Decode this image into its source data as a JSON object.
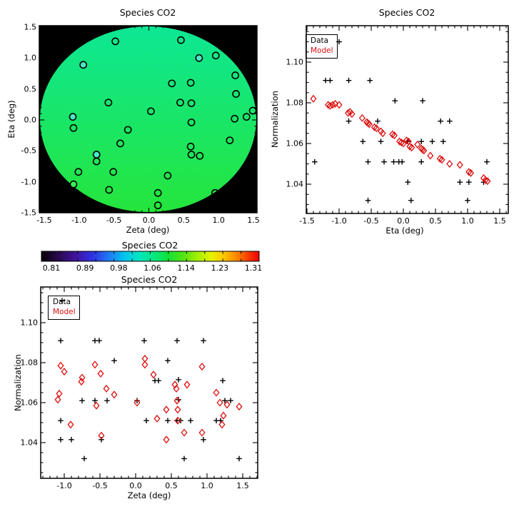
{
  "figure": {
    "background": "#ffffff"
  },
  "chart_data": [
    {
      "id": "disk_map",
      "type": "scatter",
      "title": "Species CO2",
      "xlabel": "Zeta (deg)",
      "ylabel": "Eta (deg)",
      "xlim": [
        -1.5,
        1.5
      ],
      "ylim": [
        -1.5,
        1.5
      ],
      "grid": false,
      "plot_background": "#000000",
      "disk_gradient_top": "#0de794",
      "disk_gradient_bottom": "#25e53c",
      "marker_outline": "#000000",
      "point_fills": {
        "bg": "none",
        "cyan": "#48e9c8",
        "green": "#35ef52"
      },
      "x_tick_values": [
        -1.5,
        -1.0,
        -0.5,
        0.0,
        0.5,
        1.0,
        1.5
      ],
      "x_tick_labels": [
        "-1.5",
        "-1.0",
        "-0.5",
        "0.0",
        "0.5",
        "1.0",
        "1.5"
      ],
      "y_tick_values": [
        1.5,
        1.0,
        0.5,
        0.0,
        -0.5,
        -1.0,
        -1.5
      ],
      "y_tick_labels": [
        "1.5",
        "1.0",
        "0.5",
        "0.0",
        "-0.5",
        "-1.0",
        "-1.5"
      ],
      "points": [
        [
          -0.48,
          1.27,
          "bg"
        ],
        [
          0.46,
          1.29,
          "bg"
        ],
        [
          0.72,
          1.0,
          "cyan"
        ],
        [
          0.96,
          1.04,
          "bg"
        ],
        [
          -0.94,
          0.89,
          "cyan"
        ],
        [
          1.24,
          0.72,
          "bg"
        ],
        [
          0.33,
          0.59,
          "bg"
        ],
        [
          0.6,
          0.6,
          "bg"
        ],
        [
          1.25,
          0.42,
          "bg"
        ],
        [
          -0.58,
          0.28,
          "bg"
        ],
        [
          0.45,
          0.28,
          "bg"
        ],
        [
          0.61,
          0.27,
          "bg"
        ],
        [
          0.03,
          0.14,
          "bg"
        ],
        [
          1.49,
          0.15,
          "bg"
        ],
        [
          1.23,
          0.02,
          "bg"
        ],
        [
          1.4,
          0.05,
          "bg"
        ],
        [
          -1.09,
          0.05,
          "cyan"
        ],
        [
          0.61,
          -0.04,
          "bg"
        ],
        [
          -1.08,
          -0.13,
          "bg"
        ],
        [
          -0.3,
          -0.16,
          "bg"
        ],
        [
          1.16,
          -0.33,
          "bg"
        ],
        [
          -0.41,
          -0.38,
          "bg"
        ],
        [
          0.6,
          -0.43,
          "bg"
        ],
        [
          0.61,
          -0.56,
          "bg"
        ],
        [
          0.73,
          -0.58,
          "bg"
        ],
        [
          -0.75,
          -0.56,
          "cyan"
        ],
        [
          -0.75,
          -0.67,
          "bg"
        ],
        [
          -1.01,
          -0.84,
          "bg"
        ],
        [
          -0.51,
          -0.84,
          "bg"
        ],
        [
          0.27,
          -0.9,
          "bg"
        ],
        [
          -1.08,
          -1.04,
          "green"
        ],
        [
          -0.57,
          -1.13,
          "bg"
        ],
        [
          0.13,
          -1.18,
          "bg"
        ],
        [
          0.95,
          -1.18,
          "bg"
        ],
        [
          0.13,
          -1.38,
          "bg"
        ]
      ]
    },
    {
      "id": "eta_scatter",
      "type": "scatter",
      "title": "Species CO2",
      "xlabel": "Eta (deg)",
      "ylabel": "Normalization",
      "xlim": [
        -1.51,
        1.63
      ],
      "ylim": [
        1.026,
        1.118
      ],
      "grid": false,
      "legend": [
        "Data",
        "Model"
      ],
      "legend_colors": [
        "#000000",
        "#dd1111"
      ],
      "legend_position": "upper-left",
      "x_tick_values": [
        -1.5,
        -1.0,
        -0.5,
        0.0,
        0.5,
        1.0,
        1.5
      ],
      "x_tick_labels": [
        "-1.5",
        "-1.0",
        "-0.5",
        "0.0",
        "0.5",
        "1.0",
        "1.5"
      ],
      "y_tick_values": [
        1.1,
        1.08,
        1.06,
        1.04
      ],
      "y_tick_labels": [
        "1.10",
        "1.08",
        "1.06",
        "1.04"
      ],
      "series": [
        {
          "name": "Data",
          "marker": "plus",
          "color": "#000000",
          "points": [
            [
              -1.0,
              1.11
            ],
            [
              -1.21,
              1.091
            ],
            [
              -1.14,
              1.091
            ],
            [
              -0.85,
              1.091
            ],
            [
              -0.52,
              1.091
            ],
            [
              -0.13,
              1.081
            ],
            [
              0.3,
              1.081
            ],
            [
              -0.85,
              1.071
            ],
            [
              -0.4,
              1.071
            ],
            [
              0.58,
              1.071
            ],
            [
              0.72,
              1.071
            ],
            [
              -0.63,
              1.061
            ],
            [
              -0.35,
              1.061
            ],
            [
              0.07,
              1.061
            ],
            [
              0.28,
              1.061
            ],
            [
              0.45,
              1.061
            ],
            [
              0.62,
              1.061
            ],
            [
              -1.38,
              1.051
            ],
            [
              -0.55,
              1.051
            ],
            [
              -0.3,
              1.051
            ],
            [
              -0.15,
              1.051
            ],
            [
              -0.07,
              1.051
            ],
            [
              -0.02,
              1.051
            ],
            [
              0.28,
              1.051
            ],
            [
              1.3,
              1.051
            ],
            [
              0.07,
              1.041
            ],
            [
              0.88,
              1.041
            ],
            [
              1.02,
              1.041
            ],
            [
              1.25,
              1.041
            ],
            [
              -0.55,
              1.032
            ],
            [
              0.12,
              1.032
            ],
            [
              1.0,
              1.032
            ]
          ]
        },
        {
          "name": "Model",
          "marker": "diamond",
          "color": "#dd1111",
          "points": [
            [
              -1.4,
              1.082
            ],
            [
              -1.17,
              1.079
            ],
            [
              -1.14,
              1.0785
            ],
            [
              -1.1,
              1.079
            ],
            [
              -1.06,
              1.0795
            ],
            [
              -1.0,
              1.079
            ],
            [
              -0.86,
              1.075
            ],
            [
              -0.83,
              1.0755
            ],
            [
              -0.8,
              1.0745
            ],
            [
              -0.64,
              1.0725
            ],
            [
              -0.57,
              1.0705
            ],
            [
              -0.55,
              1.07
            ],
            [
              -0.53,
              1.0695
            ],
            [
              -0.45,
              1.068
            ],
            [
              -0.42,
              1.0675
            ],
            [
              -0.35,
              1.066
            ],
            [
              -0.32,
              1.065
            ],
            [
              -0.17,
              1.0645
            ],
            [
              -0.14,
              1.064
            ],
            [
              -0.06,
              1.061
            ],
            [
              -0.03,
              1.0605
            ],
            [
              0.0,
              1.06
            ],
            [
              0.05,
              1.0615
            ],
            [
              0.08,
              1.061
            ],
            [
              0.1,
              1.0585
            ],
            [
              0.13,
              1.058
            ],
            [
              0.22,
              1.0595
            ],
            [
              0.28,
              1.0575
            ],
            [
              0.3,
              1.057
            ],
            [
              0.32,
              1.0565
            ],
            [
              0.42,
              1.054
            ],
            [
              0.57,
              1.0525
            ],
            [
              0.6,
              1.052
            ],
            [
              0.72,
              1.05
            ],
            [
              0.88,
              1.0495
            ],
            [
              1.02,
              1.046
            ],
            [
              1.05,
              1.0455
            ],
            [
              1.25,
              1.043
            ],
            [
              1.28,
              1.042
            ],
            [
              1.31,
              1.0415
            ]
          ]
        }
      ]
    },
    {
      "id": "colorbar",
      "type": "colorbar",
      "title": "Species CO2",
      "tick_labels": [
        "0.81",
        "0.89",
        "0.98",
        "1.06",
        "1.14",
        "1.23",
        "1.31"
      ],
      "tick_values": [
        0.81,
        0.89,
        0.98,
        1.06,
        1.14,
        1.23,
        1.31
      ],
      "range": [
        0.81,
        1.31
      ],
      "gradient_stops": [
        [
          0,
          "#050005"
        ],
        [
          8,
          "#2a0a52"
        ],
        [
          16,
          "#41149f"
        ],
        [
          23,
          "#2f2fe2"
        ],
        [
          31,
          "#2079f2"
        ],
        [
          38,
          "#00c3f0"
        ],
        [
          45,
          "#00e6c0"
        ],
        [
          52,
          "#06e77e"
        ],
        [
          58,
          "#10e23a"
        ],
        [
          65,
          "#52e414"
        ],
        [
          72,
          "#a8ee00"
        ],
        [
          78,
          "#e6f400"
        ],
        [
          84,
          "#fcc400"
        ],
        [
          90,
          "#fb8200"
        ],
        [
          95,
          "#f83c00"
        ],
        [
          100,
          "#ee0000"
        ]
      ]
    },
    {
      "id": "zeta_scatter",
      "type": "scatter",
      "title": "Species CO2",
      "xlabel": "Zeta (deg)",
      "ylabel": "Normalization",
      "xlim": [
        -1.33,
        1.71
      ],
      "ylim": [
        1.022,
        1.118
      ],
      "grid": false,
      "legend": [
        "Data",
        "Model"
      ],
      "legend_colors": [
        "#000000",
        "#dd1111"
      ],
      "legend_position": "upper-left",
      "x_tick_values": [
        -1.0,
        -0.5,
        0.0,
        0.5,
        1.0,
        1.5
      ],
      "x_tick_labels": [
        "-1.0",
        "-0.5",
        "0.0",
        "0.5",
        "1.0",
        "1.5"
      ],
      "y_tick_values": [
        1.1,
        1.08,
        1.06,
        1.04
      ],
      "y_tick_labels": [
        "1.10",
        "1.08",
        "1.06",
        "1.04"
      ],
      "series": [
        {
          "name": "Data",
          "marker": "plus",
          "color": "#000000",
          "points": [
            [
              -1.03,
              1.111
            ],
            [
              -1.05,
              1.091
            ],
            [
              -0.57,
              1.091
            ],
            [
              -0.51,
              1.091
            ],
            [
              0.12,
              1.091
            ],
            [
              0.58,
              1.091
            ],
            [
              0.95,
              1.091
            ],
            [
              -0.3,
              1.081
            ],
            [
              0.45,
              1.081
            ],
            [
              0.27,
              1.071
            ],
            [
              0.32,
              1.071
            ],
            [
              0.6,
              1.0715
            ],
            [
              1.22,
              1.071
            ],
            [
              -0.75,
              1.061
            ],
            [
              -0.57,
              1.061
            ],
            [
              -0.4,
              1.061
            ],
            [
              0.02,
              1.061
            ],
            [
              0.6,
              1.0615
            ],
            [
              1.25,
              1.061
            ],
            [
              1.33,
              1.061
            ],
            [
              -1.05,
              1.051
            ],
            [
              0.15,
              1.051
            ],
            [
              0.45,
              1.051
            ],
            [
              0.58,
              1.051
            ],
            [
              0.63,
              1.051
            ],
            [
              0.77,
              1.051
            ],
            [
              1.13,
              1.051
            ],
            [
              1.19,
              1.051
            ],
            [
              -1.05,
              1.0415
            ],
            [
              -0.9,
              1.0415
            ],
            [
              -0.48,
              1.0415
            ],
            [
              0.95,
              1.0415
            ],
            [
              -0.72,
              1.032
            ],
            [
              0.68,
              1.032
            ],
            [
              1.45,
              1.032
            ]
          ]
        },
        {
          "name": "Model",
          "marker": "diamond",
          "color": "#dd1111",
          "points": [
            [
              -1.05,
              1.0785
            ],
            [
              -1.0,
              1.0755
            ],
            [
              -0.75,
              1.0725
            ],
            [
              -0.76,
              1.0705
            ],
            [
              -1.07,
              1.0645
            ],
            [
              -1.09,
              1.0615
            ],
            [
              -0.91,
              1.049
            ],
            [
              -0.57,
              1.079
            ],
            [
              -0.49,
              1.0745
            ],
            [
              -0.41,
              1.067
            ],
            [
              -0.55,
              1.0585
            ],
            [
              -0.3,
              1.064
            ],
            [
              -0.48,
              1.0435
            ],
            [
              0.13,
              1.082
            ],
            [
              0.13,
              1.079
            ],
            [
              0.25,
              1.074
            ],
            [
              0.02,
              1.06
            ],
            [
              0.3,
              1.052
            ],
            [
              0.43,
              1.0565
            ],
            [
              0.43,
              1.0415
            ],
            [
              0.55,
              1.069
            ],
            [
              0.57,
              1.067
            ],
            [
              0.58,
              1.061
            ],
            [
              0.59,
              1.0565
            ],
            [
              0.59,
              1.051
            ],
            [
              0.68,
              1.045
            ],
            [
              0.72,
              1.069
            ],
            [
              0.93,
              1.078
            ],
            [
              0.93,
              1.045
            ],
            [
              1.13,
              1.065
            ],
            [
              1.18,
              1.06
            ],
            [
              1.21,
              1.049
            ],
            [
              1.23,
              1.0535
            ],
            [
              1.28,
              1.059
            ],
            [
              1.45,
              1.058
            ]
          ]
        }
      ]
    }
  ]
}
